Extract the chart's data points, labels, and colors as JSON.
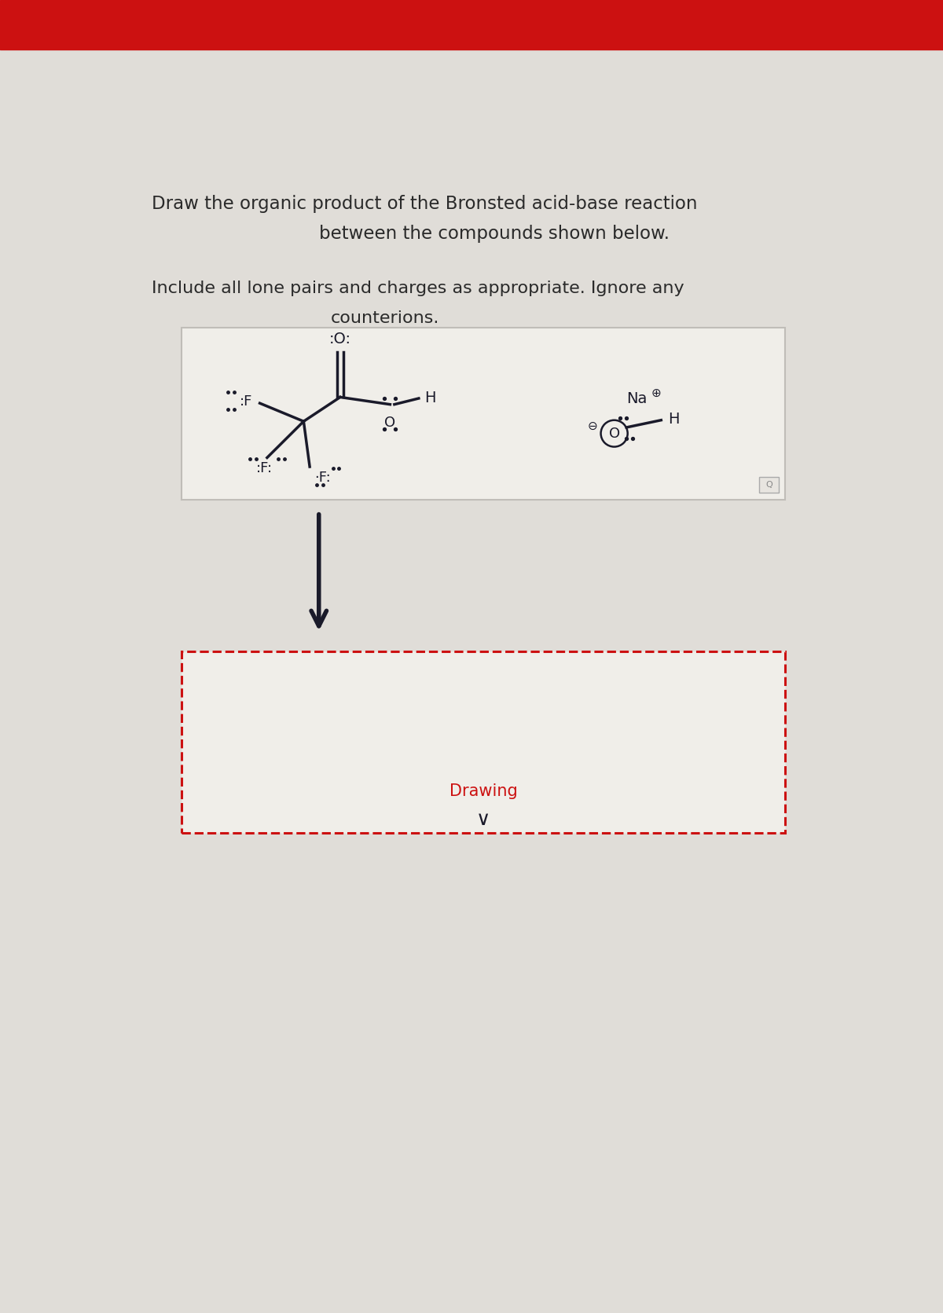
{
  "bg_color": "#e0ddd8",
  "red_bar_color": "#cc1111",
  "title_line1": "Draw the organic product of the Bronsted acid-base reaction",
  "title_line2": "between the compounds shown below.",
  "subtitle_line1": "Include all lone pairs and charges as appropriate. Ignore any",
  "subtitle_line2": "counterions.",
  "box_bg": "#f0eee9",
  "box_border": "#c0bdb8",
  "drawing_box_border": "#cc1111",
  "drawing_label": "Drawing",
  "dark_color": "#1a1a2a",
  "text_color": "#2a2a2a"
}
